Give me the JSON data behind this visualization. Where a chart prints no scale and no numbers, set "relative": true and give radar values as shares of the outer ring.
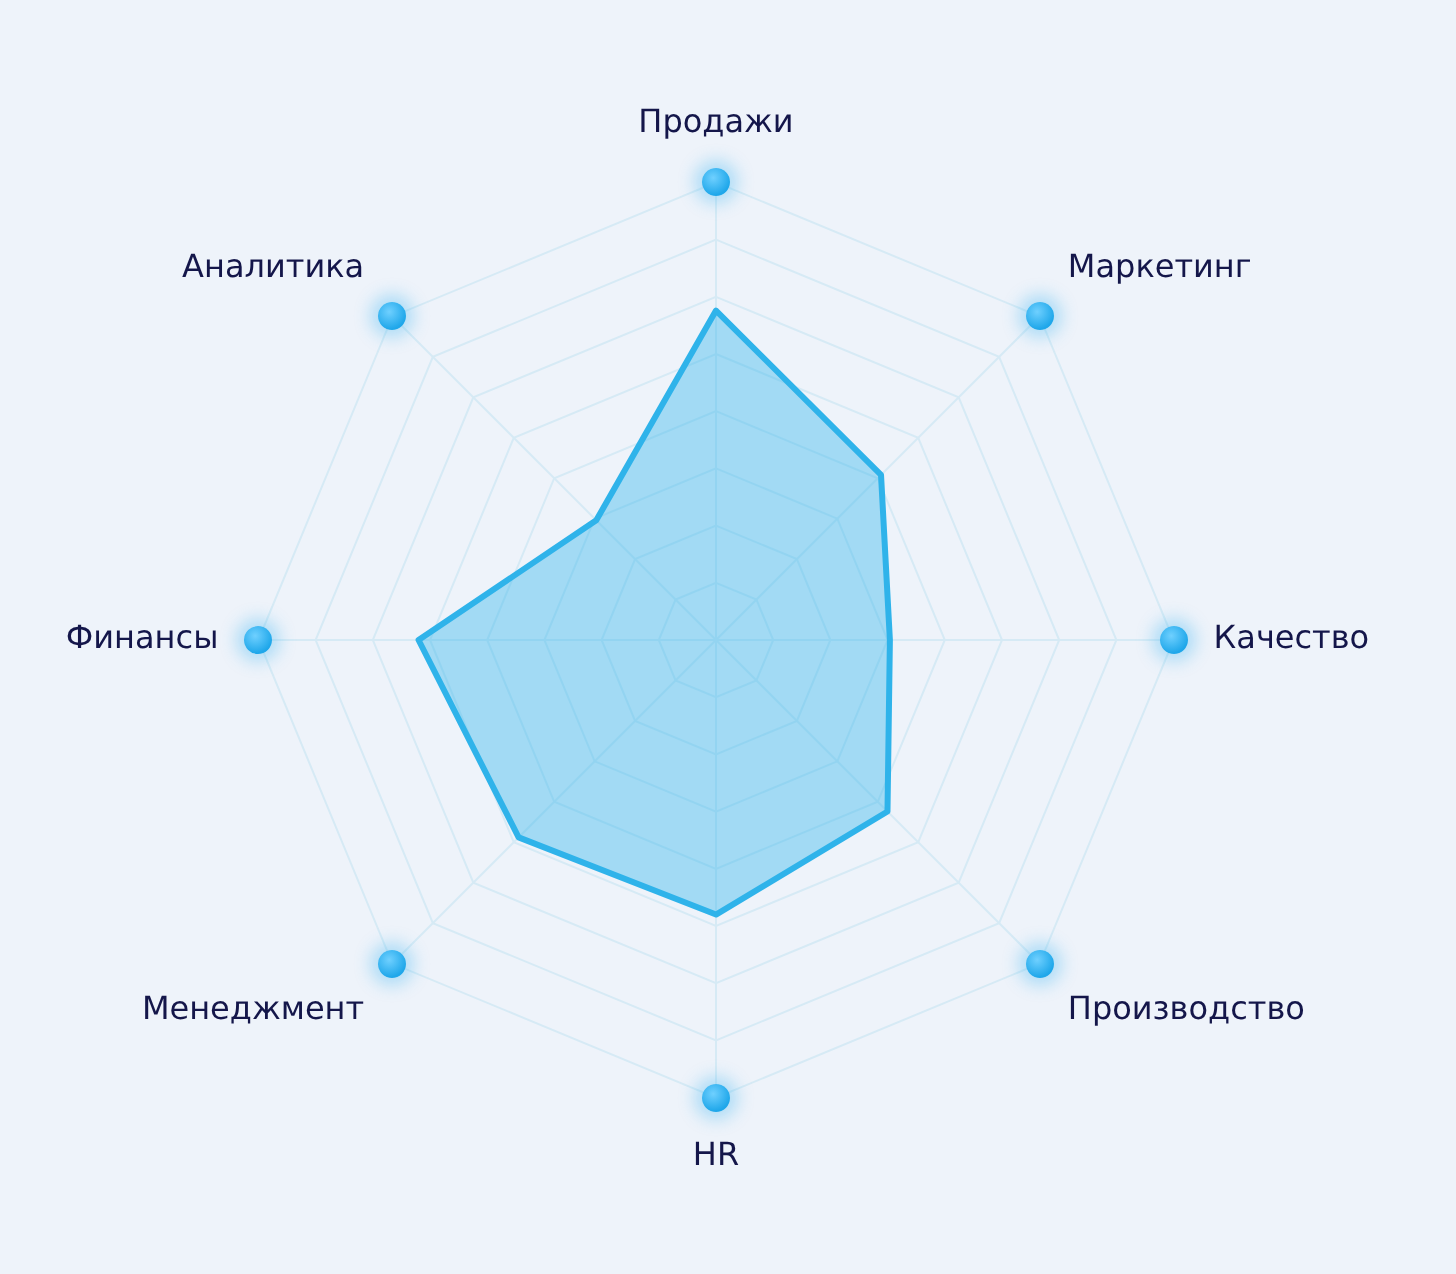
{
  "chart_data": {
    "type": "radar",
    "relative": true,
    "grid": true,
    "categories": [
      "Продажи",
      "Маркетинг",
      "Качество",
      "Производство",
      "HR",
      "Менеджмент",
      "Финансы",
      "Аналитика"
    ],
    "series": [
      {
        "color": "#2fb3ea",
        "values": [
          0.72,
          0.51,
          0.38,
          0.53,
          0.6,
          0.61,
          0.65,
          0.37
        ]
      }
    ]
  }
}
